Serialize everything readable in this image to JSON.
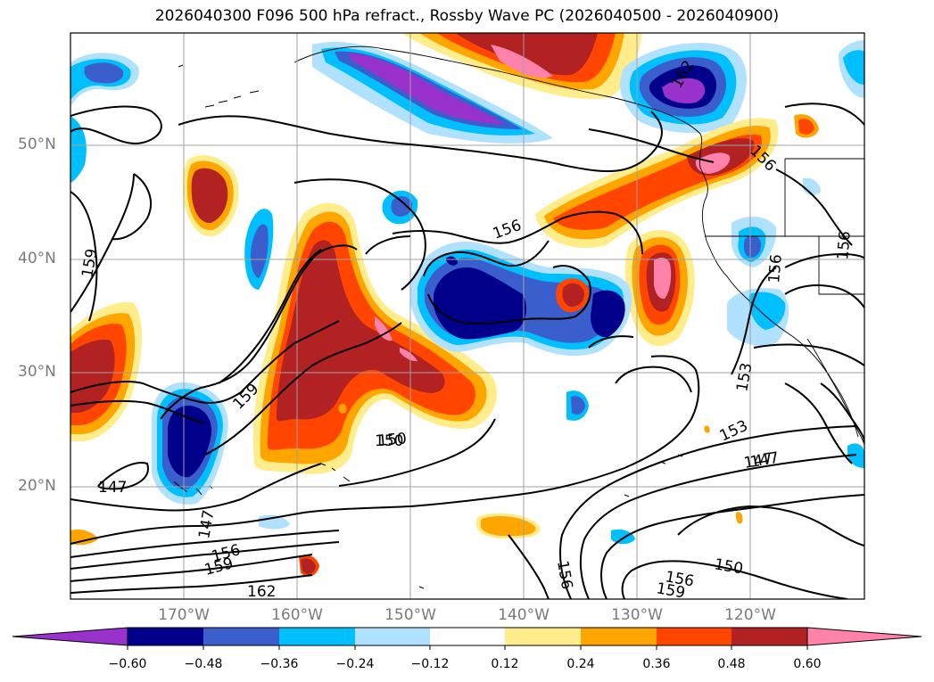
{
  "title": "2026040300 F096 500 hPa refract., Rossby Wave PC (2026040500 - 2026040900)",
  "lat_labels": [
    "50°N",
    "40°N",
    "30°N",
    "20°N"
  ],
  "lon_labels": [
    "170°W",
    "160°W",
    "150°W",
    "140°W",
    "130°W",
    "120°W"
  ],
  "colorbar": {
    "ticks": [
      "−0.60",
      "−0.48",
      "−0.36",
      "−0.24",
      "−0.12",
      "0.12",
      "0.24",
      "0.36",
      "0.48",
      "0.60"
    ],
    "colors": [
      "#9932cc",
      "#00008b",
      "#3a5fcd",
      "#00bfff",
      "#b0e2ff",
      "#ffffff",
      "#ffec8b",
      "#ffa500",
      "#ff4500",
      "#b22222",
      "#ff82ab"
    ]
  },
  "contour_labels": [
    "159",
    "156",
    "153",
    "150",
    "147",
    "162",
    "159",
    "156",
    "153",
    "150",
    "147",
    "162",
    "156",
    "159",
    "156",
    "156",
    "156",
    "147",
    "150",
    "159",
    "147",
    "156",
    "159",
    "162",
    "153"
  ]
}
